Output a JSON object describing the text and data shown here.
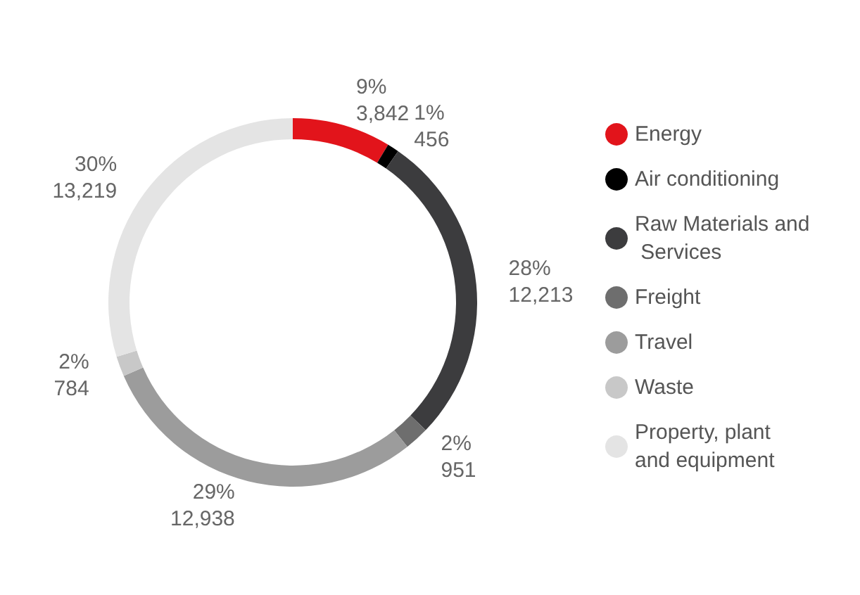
{
  "chart_data": {
    "type": "donut",
    "categories": [
      "Energy",
      "Air conditioning",
      "Raw Materials and Services",
      "Freight",
      "Travel",
      "Waste",
      "Property, plant and equipment"
    ],
    "values": [
      3842,
      456,
      12213,
      951,
      12938,
      784,
      13219
    ],
    "colors": [
      "#e2141b",
      "#000000",
      "#3c3c3e",
      "#6e6e6e",
      "#9c9c9c",
      "#c8c8c8",
      "#e4e4e4"
    ],
    "value_labels": [
      "9%\n3,842",
      "1%\n456",
      "28%\n12,213",
      "2%\n951",
      "29%\n12,938",
      "2%\n784",
      "30%\n13,219"
    ],
    "legend": "right"
  }
}
